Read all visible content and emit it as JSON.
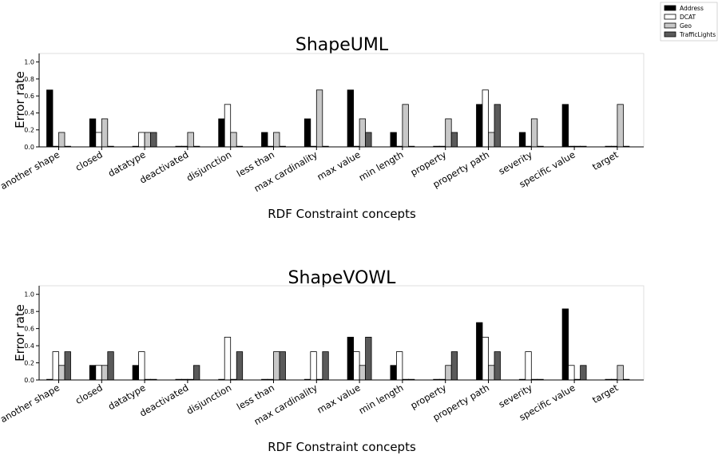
{
  "legend": {
    "entries": [
      {
        "name": "Address",
        "color": "#000000"
      },
      {
        "name": "DCAT",
        "color": "#ffffff"
      },
      {
        "name": "Geo",
        "color": "#c8c8c8"
      },
      {
        "name": "TrafficLights",
        "color": "#5a5a5a"
      }
    ]
  },
  "chart_data": [
    {
      "type": "bar",
      "title": "ShapeUML",
      "xlabel": "RDF Constraint concepts",
      "ylabel": "Error rate",
      "ylim": [
        0,
        1.1
      ],
      "yticks": [
        "0.0",
        "0.2",
        "0.4",
        "0.6",
        "0.8",
        "1.0"
      ],
      "categories": [
        "another shape",
        "closed",
        "datatype",
        "deactivated",
        "disjunction",
        "less than",
        "max cardinality",
        "max value",
        "min length",
        "property",
        "property path",
        "severity",
        "specific value",
        "target"
      ],
      "series": [
        {
          "name": "Address",
          "values": [
            0.67,
            0.33,
            0,
            0,
            0.33,
            0.17,
            0.33,
            0.67,
            0.17,
            0,
            0.5,
            0.17,
            0.5,
            0
          ]
        },
        {
          "name": "DCAT",
          "values": [
            0,
            0.17,
            0.17,
            0,
            0.5,
            0,
            0,
            0,
            0,
            0,
            0.67,
            0,
            0,
            0
          ]
        },
        {
          "name": "Geo",
          "values": [
            0.17,
            0.33,
            0.17,
            0.17,
            0.17,
            0.17,
            0.67,
            0.33,
            0.5,
            0.33,
            0.17,
            0.33,
            0,
            0.5
          ]
        },
        {
          "name": "TrafficLights",
          "values": [
            0,
            0,
            0.17,
            0,
            0,
            0,
            0,
            0.17,
            0,
            0.17,
            0.5,
            0,
            0,
            0
          ]
        }
      ]
    },
    {
      "type": "bar",
      "title": "ShapeVOWL",
      "xlabel": "RDF Constraint concepts",
      "ylabel": "Error rate",
      "ylim": [
        0,
        1.1
      ],
      "yticks": [
        "0.0",
        "0.2",
        "0.4",
        "0.6",
        "0.8",
        "1.0"
      ],
      "categories": [
        "another shape",
        "closed",
        "datatype",
        "deactivated",
        "disjunction",
        "less than",
        "max cardinality",
        "max value",
        "min length",
        "property",
        "property path",
        "severity",
        "specific value",
        "target"
      ],
      "series": [
        {
          "name": "Address",
          "values": [
            0,
            0.17,
            0.17,
            0,
            0,
            0,
            0,
            0.5,
            0.17,
            0,
            0.67,
            0,
            0.83,
            0
          ]
        },
        {
          "name": "DCAT",
          "values": [
            0.33,
            0.17,
            0.33,
            0,
            0.5,
            0,
            0.33,
            0.33,
            0.33,
            0,
            0.5,
            0.33,
            0.17,
            0
          ]
        },
        {
          "name": "Geo",
          "values": [
            0.17,
            0.17,
            0,
            0,
            0,
            0.33,
            0,
            0.17,
            0,
            0.17,
            0.17,
            0,
            0,
            0.17
          ]
        },
        {
          "name": "TrafficLights",
          "values": [
            0.33,
            0.33,
            0,
            0.17,
            0.33,
            0.33,
            0.33,
            0.5,
            0,
            0.33,
            0.33,
            0,
            0.17,
            0
          ]
        }
      ]
    }
  ]
}
